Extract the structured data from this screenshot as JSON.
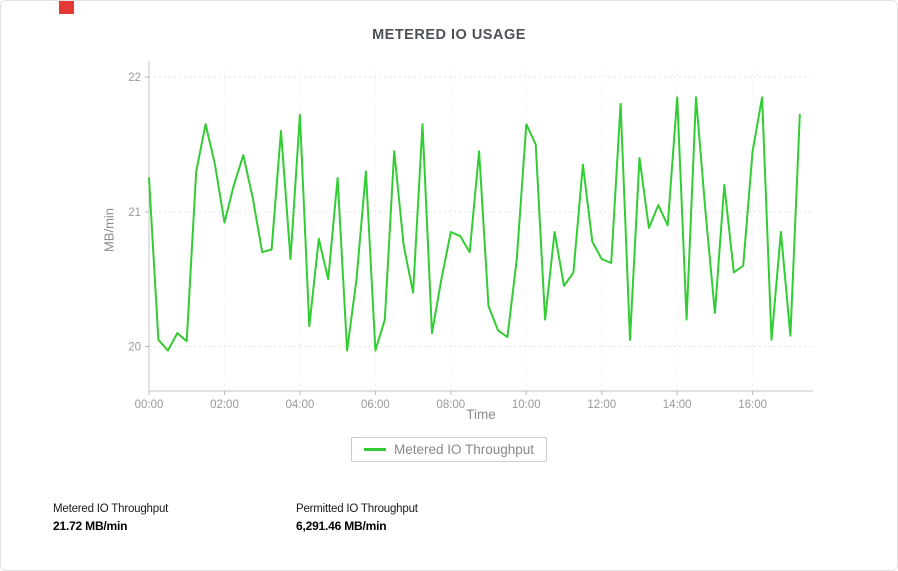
{
  "chart_data": {
    "type": "line",
    "title": "METERED IO USAGE",
    "xlabel": "Time",
    "ylabel": "MB/min",
    "xlim_hours": [
      0,
      17.6
    ],
    "ylim": [
      19.67,
      22.06
    ],
    "y_ticks": [
      20,
      21,
      22
    ],
    "x_ticks": [
      {
        "hour": 0,
        "label": "00:00"
      },
      {
        "hour": 2,
        "label": "02:00"
      },
      {
        "hour": 4,
        "label": "04:00"
      },
      {
        "hour": 6,
        "label": "06:00"
      },
      {
        "hour": 8,
        "label": "08:00"
      },
      {
        "hour": 10,
        "label": "10:00"
      },
      {
        "hour": 12,
        "label": "12:00"
      },
      {
        "hour": 14,
        "label": "14:00"
      },
      {
        "hour": 16,
        "label": "16:00"
      }
    ],
    "grid": true,
    "legend_position": "bottom",
    "series": [
      {
        "name": "Metered IO Throughput",
        "color": "#32cd32",
        "x_hours": [
          0,
          0.25,
          0.5,
          0.75,
          1,
          1.25,
          1.5,
          1.75,
          2,
          2.25,
          2.5,
          2.75,
          3,
          3.25,
          3.5,
          3.75,
          4,
          4.25,
          4.5,
          4.75,
          5,
          5.25,
          5.5,
          5.75,
          6,
          6.25,
          6.5,
          6.75,
          7,
          7.25,
          7.5,
          7.75,
          8,
          8.25,
          8.5,
          8.75,
          9,
          9.25,
          9.5,
          9.75,
          10,
          10.25,
          10.5,
          10.75,
          11,
          11.25,
          11.5,
          11.75,
          12,
          12.25,
          12.5,
          12.75,
          13,
          13.25,
          13.5,
          13.75,
          14,
          14.25,
          14.5,
          14.75,
          15,
          15.25,
          15.5,
          15.75,
          16,
          16.25,
          16.5,
          16.75,
          17,
          17.25
        ],
        "values": [
          21.25,
          20.05,
          19.97,
          20.1,
          20.04,
          21.3,
          21.65,
          21.35,
          20.92,
          21.2,
          21.42,
          21.1,
          20.7,
          20.72,
          21.6,
          20.65,
          21.72,
          20.15,
          20.8,
          20.5,
          21.25,
          19.97,
          20.5,
          21.3,
          19.97,
          20.2,
          21.45,
          20.75,
          20.4,
          21.65,
          20.1,
          20.5,
          20.85,
          20.82,
          20.7,
          21.45,
          20.3,
          20.12,
          20.07,
          20.65,
          21.65,
          21.5,
          20.2,
          20.85,
          20.45,
          20.55,
          21.35,
          20.78,
          20.65,
          20.62,
          21.8,
          20.05,
          21.4,
          20.88,
          21.05,
          20.9,
          21.85,
          20.2,
          21.85,
          21.0,
          20.25,
          21.2,
          20.55,
          20.6,
          21.45,
          21.85,
          20.05,
          20.85,
          20.08,
          21.72
        ]
      }
    ]
  },
  "stats": [
    {
      "label": "Metered IO Throughput",
      "value": "21.72 MB/min"
    },
    {
      "label": "Permitted IO Throughput",
      "value": "6,291.46 MB/min"
    }
  ],
  "colors": {
    "line_green": "#32cd32",
    "title_text": "#4c5157",
    "axis_text": "#9a9a9a",
    "grid_line": "#e2e2e2",
    "badge_red": "#e53935"
  }
}
